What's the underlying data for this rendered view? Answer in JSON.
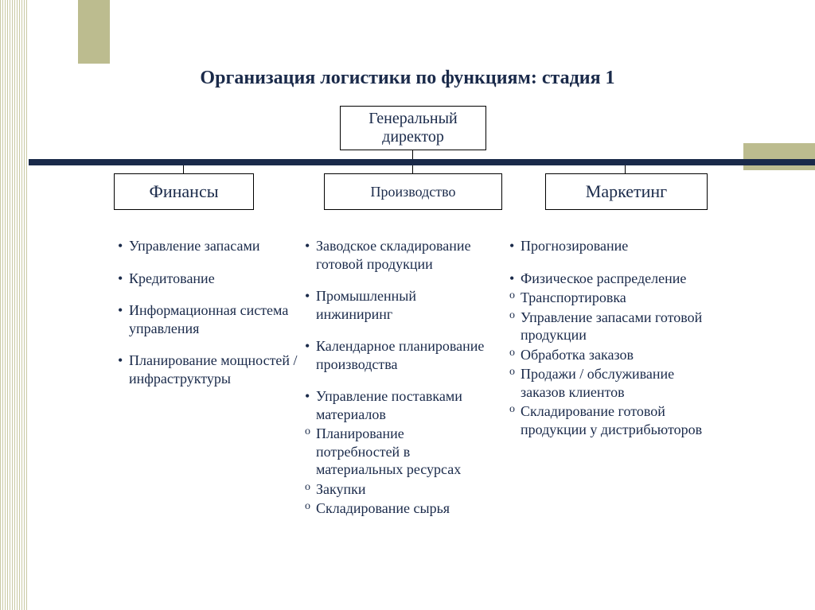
{
  "colors": {
    "text": "#1a2a4a",
    "accent_bar": "#bcbc8f",
    "dark_bar": "#1a2a4a",
    "stripe": "#c9c9a4",
    "background": "#ffffff",
    "box_border": "#000000"
  },
  "title": "Организация логистики по функциям: стадия 1",
  "org": {
    "root": "Генеральный директор",
    "children": [
      {
        "label": "Финансы"
      },
      {
        "label": "Производство"
      },
      {
        "label": "Маркетинг"
      }
    ]
  },
  "columns": {
    "finance": {
      "items": [
        {
          "type": "bullet",
          "text": "Управление запасами"
        },
        {
          "type": "bullet",
          "text": "Кредитование"
        },
        {
          "type": "bullet",
          "text": "Информационная система управления"
        },
        {
          "type": "bullet",
          "text": "Планирование мощностей / инфраструктуры"
        }
      ]
    },
    "production": {
      "items": [
        {
          "type": "bullet",
          "text": "Заводское складирование готовой продукции"
        },
        {
          "type": "bullet",
          "text": "Промышленный инжиниринг"
        },
        {
          "type": "bullet",
          "text": "Календарное планирование производства"
        },
        {
          "type": "bullet",
          "text": "Управление поставками материалов",
          "tight": true
        },
        {
          "type": "circle",
          "text": "Планирование потребностей в материальных ресурсах"
        },
        {
          "type": "circle",
          "text": "Закупки"
        },
        {
          "type": "circle",
          "text": "Складирование сырья"
        }
      ]
    },
    "marketing": {
      "items": [
        {
          "type": "bullet",
          "text": "Прогнозирование"
        },
        {
          "type": "bullet",
          "text": "Физическое распределение",
          "tight": true
        },
        {
          "type": "circle",
          "text": "Транспортировка"
        },
        {
          "type": "circle",
          "text": "Управление запасами готовой продукции"
        },
        {
          "type": "circle",
          "text": "Обработка заказов"
        },
        {
          "type": "circle",
          "text": "Продажи / обслуживание заказов клиентов"
        },
        {
          "type": "circle",
          "text": "Складирование готовой продукции у дистрибьюторов"
        }
      ]
    }
  }
}
